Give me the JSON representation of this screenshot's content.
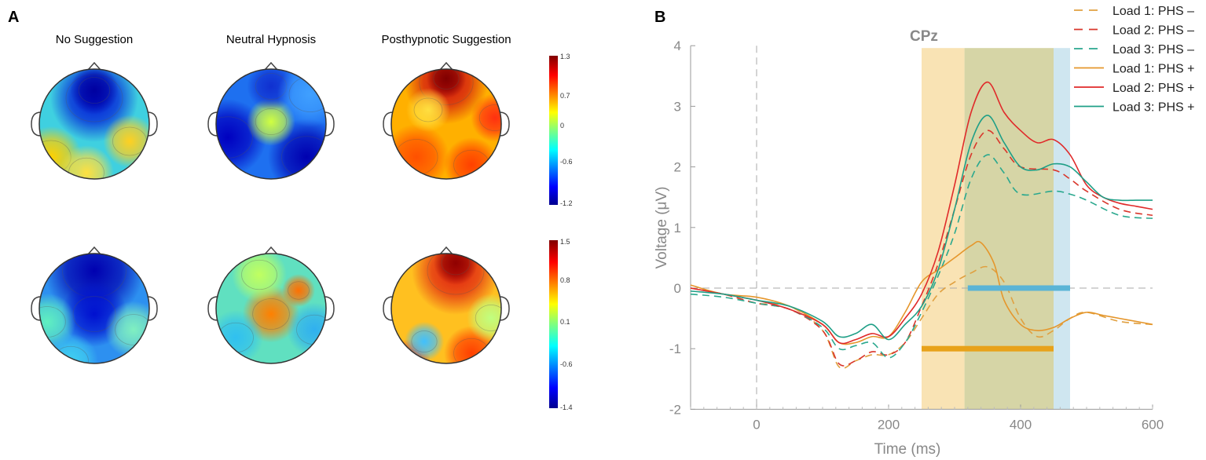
{
  "panel_a": {
    "label": "A",
    "conditions": [
      "No Suggestion",
      "Neutral Hypnosis",
      "Posthypnotic Suggestion"
    ],
    "colorbars": [
      {
        "ticks": [
          "1.3",
          "0.7",
          "0",
          "-0.6",
          "-1.2"
        ]
      },
      {
        "ticks": [
          "1.5",
          "0.8",
          "0.1",
          "-0.6",
          "-1.4"
        ]
      }
    ]
  },
  "chart_data": {
    "type": "line",
    "panel_label": "B",
    "title": "CPz",
    "xlabel": "Time (ms)",
    "ylabel": "Voltage (μV)",
    "xlim": [
      -100,
      600
    ],
    "ylim": [
      -2,
      4
    ],
    "xticks": [
      "0",
      "200",
      "400",
      "600"
    ],
    "yticks": [
      "-2",
      "-1",
      "0",
      "1",
      "2",
      "3",
      "4"
    ],
    "shaded_windows": [
      {
        "range": [
          250,
          315
        ],
        "color": "#f9e3b4"
      },
      {
        "range": [
          315,
          450
        ],
        "color": "#d6d5a6"
      },
      {
        "range": [
          450,
          475
        ],
        "color": "#cfe6f0"
      }
    ],
    "significance_bars": [
      {
        "range": [
          320,
          475
        ],
        "y": 0,
        "color": "#5ab4d6"
      },
      {
        "range": [
          250,
          450
        ],
        "y": -1,
        "color": "#e8a21a"
      }
    ],
    "legend_position": "top-right",
    "series": [
      {
        "name": "Load 1: PHS –",
        "color": "#e0a040",
        "dash": true,
        "x": [
          -100,
          -50,
          0,
          50,
          100,
          125,
          150,
          175,
          200,
          225,
          250,
          275,
          300,
          325,
          350,
          375,
          400,
          425,
          450,
          475,
          500,
          550,
          600
        ],
        "y": [
          0,
          -0.1,
          -0.25,
          -0.3,
          -0.7,
          -1.3,
          -1.2,
          -1.1,
          -1.1,
          -0.9,
          -0.5,
          -0.1,
          0.1,
          0.25,
          0.35,
          0.1,
          -0.5,
          -0.8,
          -0.7,
          -0.5,
          -0.4,
          -0.55,
          -0.6
        ]
      },
      {
        "name": "Load 2: PHS –",
        "color": "#d9362b",
        "dash": true,
        "x": [
          -100,
          -50,
          0,
          50,
          100,
          125,
          150,
          175,
          200,
          225,
          250,
          275,
          300,
          325,
          350,
          375,
          400,
          450,
          475,
          500,
          550,
          600
        ],
        "y": [
          0,
          -0.1,
          -0.25,
          -0.35,
          -0.7,
          -1.25,
          -1.2,
          -1.05,
          -1.1,
          -0.9,
          -0.3,
          0.4,
          1.3,
          2.2,
          2.6,
          2.3,
          2.0,
          1.95,
          1.8,
          1.6,
          1.3,
          1.2
        ]
      },
      {
        "name": "Load 3: PHS –",
        "color": "#2aa88e",
        "dash": true,
        "x": [
          -100,
          -50,
          0,
          50,
          100,
          125,
          150,
          175,
          200,
          225,
          250,
          275,
          300,
          325,
          350,
          375,
          400,
          450,
          475,
          500,
          550,
          600
        ],
        "y": [
          -0.1,
          -0.15,
          -0.25,
          -0.35,
          -0.65,
          -1.0,
          -0.95,
          -0.9,
          -1.15,
          -0.9,
          -0.4,
          0.2,
          0.9,
          1.8,
          2.2,
          1.9,
          1.55,
          1.6,
          1.55,
          1.45,
          1.2,
          1.15
        ]
      },
      {
        "name": "Load 1: PHS +",
        "color": "#e5962b",
        "dash": false,
        "x": [
          -100,
          -50,
          0,
          50,
          100,
          125,
          150,
          175,
          200,
          225,
          250,
          275,
          300,
          325,
          340,
          360,
          375,
          400,
          425,
          450,
          475,
          500,
          525,
          550,
          575,
          600
        ],
        "y": [
          0.05,
          -0.1,
          -0.15,
          -0.3,
          -0.6,
          -0.9,
          -0.9,
          -0.8,
          -0.8,
          -0.4,
          0.1,
          0.3,
          0.5,
          0.7,
          0.75,
          0.4,
          -0.2,
          -0.6,
          -0.7,
          -0.65,
          -0.5,
          -0.4,
          -0.45,
          -0.5,
          -0.55,
          -0.6
        ]
      },
      {
        "name": "Load 2: PHS +",
        "color": "#e02a2a",
        "dash": false,
        "x": [
          -100,
          -50,
          0,
          50,
          100,
          125,
          150,
          175,
          200,
          225,
          250,
          275,
          300,
          325,
          350,
          375,
          400,
          425,
          450,
          475,
          500,
          525,
          550,
          575,
          600
        ],
        "y": [
          0,
          -0.1,
          -0.2,
          -0.35,
          -0.6,
          -0.9,
          -0.85,
          -0.75,
          -0.8,
          -0.5,
          -0.1,
          0.6,
          1.7,
          2.9,
          3.4,
          2.9,
          2.6,
          2.4,
          2.45,
          2.2,
          1.7,
          1.5,
          1.4,
          1.35,
          1.3
        ]
      },
      {
        "name": "Load 3: PHS +",
        "color": "#1f9f87",
        "dash": false,
        "x": [
          -100,
          -50,
          0,
          50,
          100,
          125,
          150,
          175,
          200,
          225,
          250,
          275,
          300,
          325,
          350,
          375,
          400,
          425,
          450,
          475,
          500,
          525,
          550,
          575,
          600
        ],
        "y": [
          -0.05,
          -0.1,
          -0.2,
          -0.3,
          -0.55,
          -0.8,
          -0.75,
          -0.6,
          -0.85,
          -0.6,
          -0.3,
          0.3,
          1.3,
          2.4,
          2.85,
          2.4,
          2.0,
          1.95,
          2.05,
          2.0,
          1.75,
          1.5,
          1.45,
          1.45,
          1.45
        ]
      }
    ]
  }
}
